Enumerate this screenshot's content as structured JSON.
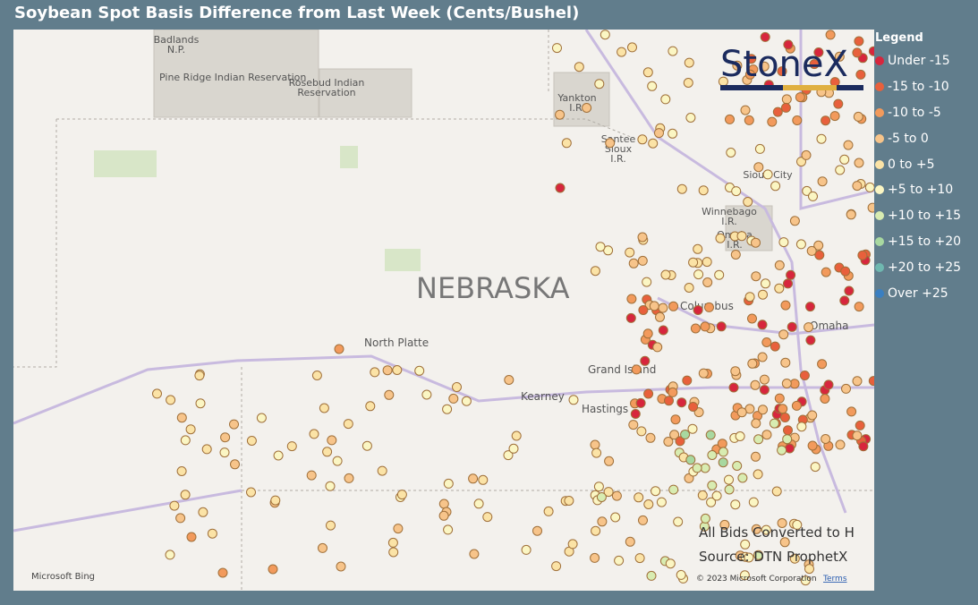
{
  "header": {
    "title": "Soybean Spot Basis Difference from Last Week (Cents/Bushel)",
    "logo": "StoneX"
  },
  "legend": {
    "title": "Legend",
    "items": [
      {
        "label": "Under -15",
        "color": "#d7263d"
      },
      {
        "label": "-15 to -10",
        "color": "#e8603c"
      },
      {
        "label": "-10 to -5",
        "color": "#f29a5c"
      },
      {
        "label": "-5 to 0",
        "color": "#f7c48a"
      },
      {
        "label": "0 to +5",
        "color": "#fbe3a6"
      },
      {
        "label": "+5 to +10",
        "color": "#fbf6c3"
      },
      {
        "label": "+10 to +15",
        "color": "#d8ecb1"
      },
      {
        "label": "+15 to +20",
        "color": "#a8d8a0"
      },
      {
        "label": "+20 to +25",
        "color": "#6fb8b0"
      },
      {
        "label": "Over +25",
        "color": "#3a7fc1"
      }
    ]
  },
  "map": {
    "state_label": "NEBRASKA",
    "places": [
      [
        "Badlands",
        "N.P."
      ],
      [
        "Pine Ridge Indian Reservation"
      ],
      [
        "Rosebud Indian",
        "Reservation"
      ],
      [
        "Yankton",
        "I.R."
      ],
      [
        "Santee",
        "Sioux",
        "I.R."
      ],
      [
        "Sioux City"
      ],
      [
        "Winnebago",
        "I.R."
      ],
      [
        "Omaha",
        "I.R."
      ],
      [
        "Columbus"
      ],
      [
        "North Platte"
      ],
      [
        "Grand Island"
      ],
      [
        "Kearney"
      ],
      [
        "Hastings"
      ],
      [
        "Omaha"
      ]
    ],
    "notes": [
      "All Bids Converted to H",
      "Source: DTN ProphetX"
    ],
    "attribution": "Microsoft Bing",
    "copyright": "© 2023 Microsoft Corporation",
    "terms": "Terms"
  }
}
